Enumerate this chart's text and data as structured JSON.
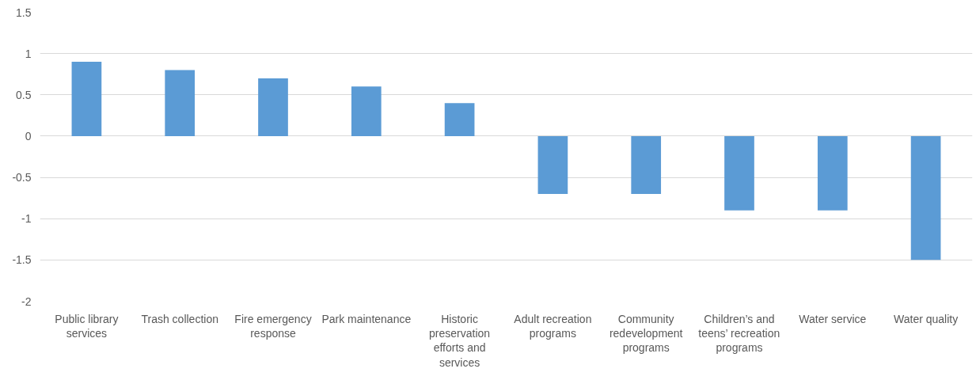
{
  "chart_data": {
    "type": "bar",
    "categories": [
      "Public library services",
      "Trash collection",
      "Fire emergency response",
      "Park maintenance",
      "Historic preservation efforts and services",
      "Adult recreation programs",
      "Community redevelopment programs",
      "Children’s and teens’ recreation programs",
      "Water service",
      "Water quality"
    ],
    "values": [
      0.9,
      0.8,
      0.7,
      0.6,
      0.4,
      -0.7,
      -0.7,
      -0.9,
      -0.9,
      -1.5
    ],
    "color": "#5b9bd5",
    "ylim": [
      -2,
      1.5
    ],
    "yticks": [
      -2,
      -1.5,
      -1,
      -0.5,
      0,
      0.5,
      1,
      1.5
    ],
    "grid": "y"
  }
}
